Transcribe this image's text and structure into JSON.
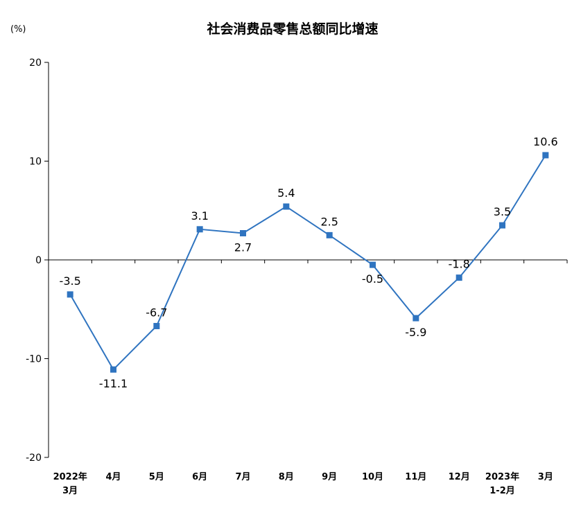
{
  "chart_data": {
    "type": "line",
    "title": "社会消费品零售总额同比增速",
    "unit_label": "(%)",
    "ylim": [
      -20,
      20
    ],
    "yticks": [
      20,
      10,
      0,
      -10,
      -20
    ],
    "grid": false,
    "categories": [
      [
        "2022年",
        "3月"
      ],
      [
        "4月"
      ],
      [
        "5月"
      ],
      [
        "6月"
      ],
      [
        "7月"
      ],
      [
        "8月"
      ],
      [
        "9月"
      ],
      [
        "10月"
      ],
      [
        "11月"
      ],
      [
        "12月"
      ],
      [
        "2023年",
        "1-2月"
      ],
      [
        "3月"
      ]
    ],
    "series": [
      {
        "values": [
          -3.5,
          -11.1,
          -6.7,
          3.1,
          2.7,
          5.4,
          2.5,
          -0.5,
          -5.9,
          -1.8,
          3.5,
          10.6
        ],
        "color": "#2f74c0"
      }
    ],
    "data_labels": [
      "-3.5",
      "-11.1",
      "-6.7",
      "3.1",
      "2.7",
      "5.4",
      "2.5",
      "-0.5",
      "-5.9",
      "-1.8",
      "3.5",
      "10.6"
    ]
  }
}
